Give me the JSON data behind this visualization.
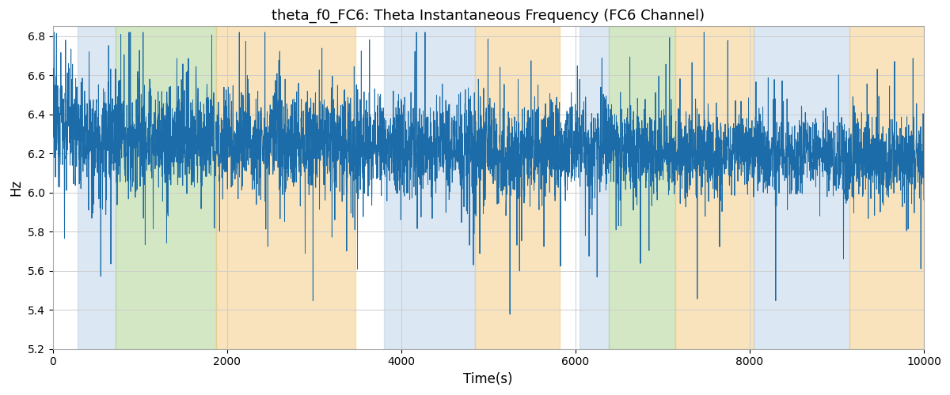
{
  "title": "theta_f0_FC6: Theta Instantaneous Frequency (FC6 Channel)",
  "xlabel": "Time(s)",
  "ylabel": "Hz",
  "xlim": [
    0,
    10000
  ],
  "ylim": [
    5.2,
    6.85
  ],
  "line_color": "#1b6ca8",
  "line_width": 0.7,
  "background_color": "#ffffff",
  "grid_color": "#cccccc",
  "seed": 12345,
  "num_points": 5000,
  "bands": [
    {
      "xmin": 290,
      "xmax": 720,
      "color": "#b8d0e8",
      "alpha": 0.5
    },
    {
      "xmin": 720,
      "xmax": 1880,
      "color": "#a8d08a",
      "alpha": 0.5
    },
    {
      "xmin": 1880,
      "xmax": 3480,
      "color": "#f5c87a",
      "alpha": 0.5
    },
    {
      "xmin": 3800,
      "xmax": 4850,
      "color": "#b8d0e8",
      "alpha": 0.5
    },
    {
      "xmin": 4850,
      "xmax": 5820,
      "color": "#f5c87a",
      "alpha": 0.5
    },
    {
      "xmin": 6050,
      "xmax": 6380,
      "color": "#b8d0e8",
      "alpha": 0.5
    },
    {
      "xmin": 6380,
      "xmax": 7150,
      "color": "#a8d08a",
      "alpha": 0.5
    },
    {
      "xmin": 7150,
      "xmax": 8050,
      "color": "#f5c87a",
      "alpha": 0.5
    },
    {
      "xmin": 8050,
      "xmax": 9150,
      "color": "#b8d0e8",
      "alpha": 0.5
    },
    {
      "xmin": 9150,
      "xmax": 10000,
      "color": "#f5c87a",
      "alpha": 0.5
    }
  ],
  "yticks": [
    5.2,
    5.4,
    5.6,
    5.8,
    6.0,
    6.2,
    6.4,
    6.6,
    6.8
  ],
  "xticks": [
    0,
    2000,
    4000,
    6000,
    8000,
    10000
  ],
  "figsize": [
    12.0,
    5.0
  ],
  "dpi": 100
}
